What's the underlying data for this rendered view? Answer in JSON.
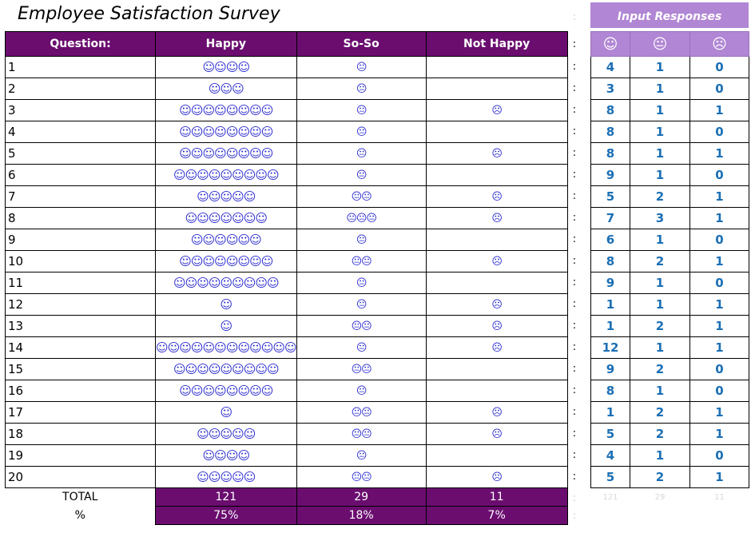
{
  "title": "Employee Satisfaction Survey",
  "headers": {
    "question": "Question:",
    "happy": "Happy",
    "soso": "So-So",
    "nothappy": "Not Happy"
  },
  "glyphs": {
    "happy": "☺",
    "soso": "😐",
    "sad": "☹"
  },
  "rows": [
    {
      "q": "1",
      "happy": "☺☺☺☺",
      "soso": "😐",
      "nothappy": "",
      "h": "4",
      "s": "1",
      "n": "0"
    },
    {
      "q": "2",
      "happy": "☺☺☺",
      "soso": "😐",
      "nothappy": "",
      "h": "3",
      "s": "1",
      "n": "0"
    },
    {
      "q": "3",
      "happy": "☺☺☺☺☺☺☺☺",
      "soso": "😐",
      "nothappy": "☹",
      "h": "8",
      "s": "1",
      "n": "1"
    },
    {
      "q": "4",
      "happy": "☺☺☺☺☺☺☺☺",
      "soso": "😐",
      "nothappy": "",
      "h": "8",
      "s": "1",
      "n": "0"
    },
    {
      "q": "5",
      "happy": "☺☺☺☺☺☺☺☺",
      "soso": "😐",
      "nothappy": "☹",
      "h": "8",
      "s": "1",
      "n": "1"
    },
    {
      "q": "6",
      "happy": "☺☺☺☺☺☺☺☺☺",
      "soso": "😐",
      "nothappy": "",
      "h": "9",
      "s": "1",
      "n": "0"
    },
    {
      "q": "7",
      "happy": "☺☺☺☺☺",
      "soso": "😐😐",
      "nothappy": "☹",
      "h": "5",
      "s": "2",
      "n": "1"
    },
    {
      "q": "8",
      "happy": "☺☺☺☺☺☺☺",
      "soso": "😐😐😐",
      "nothappy": "☹",
      "h": "7",
      "s": "3",
      "n": "1"
    },
    {
      "q": "9",
      "happy": "☺☺☺☺☺☺",
      "soso": "😐",
      "nothappy": "",
      "h": "6",
      "s": "1",
      "n": "0"
    },
    {
      "q": "10",
      "happy": "☺☺☺☺☺☺☺☺",
      "soso": "😐😐",
      "nothappy": "☹",
      "h": "8",
      "s": "2",
      "n": "1"
    },
    {
      "q": "11",
      "happy": "☺☺☺☺☺☺☺☺☺",
      "soso": "😐",
      "nothappy": "",
      "h": "9",
      "s": "1",
      "n": "0"
    },
    {
      "q": "12",
      "happy": "☺",
      "soso": "😐",
      "nothappy": "☹",
      "h": "1",
      "s": "1",
      "n": "1"
    },
    {
      "q": "13",
      "happy": "☺",
      "soso": "😐😐",
      "nothappy": "☹",
      "h": "1",
      "s": "2",
      "n": "1"
    },
    {
      "q": "14",
      "happy": "☺☺☺☺☺☺☺☺☺☺☺☺",
      "soso": "😐",
      "nothappy": "☹",
      "h": "12",
      "s": "1",
      "n": "1"
    },
    {
      "q": "15",
      "happy": "☺☺☺☺☺☺☺☺☺",
      "soso": "😐😐",
      "nothappy": "",
      "h": "9",
      "s": "2",
      "n": "0"
    },
    {
      "q": "16",
      "happy": "☺☺☺☺☺☺☺☺",
      "soso": "😐",
      "nothappy": "",
      "h": "8",
      "s": "1",
      "n": "0"
    },
    {
      "q": "17",
      "happy": "☺",
      "soso": "😐😐",
      "nothappy": "☹",
      "h": "1",
      "s": "2",
      "n": "1"
    },
    {
      "q": "18",
      "happy": "☺☺☺☺☺",
      "soso": "😐😐",
      "nothappy": "☹",
      "h": "5",
      "s": "2",
      "n": "1"
    },
    {
      "q": "19",
      "happy": "☺☺☺☺",
      "soso": "😐",
      "nothappy": "",
      "h": "4",
      "s": "1",
      "n": "0"
    },
    {
      "q": "20",
      "happy": "☺☺☺☺☺",
      "soso": "😐😐",
      "nothappy": "☹",
      "h": "5",
      "s": "2",
      "n": "1"
    }
  ],
  "totals": {
    "label": "TOTAL",
    "happy": "121",
    "soso": "29",
    "nothappy": "11"
  },
  "percent": {
    "label": "%",
    "happy": "75%",
    "soso": "18%",
    "nothappy": "7%"
  },
  "input": {
    "title": "Input Responses",
    "icons": [
      "☺",
      "😐",
      "☹"
    ],
    "footer": [
      "121",
      "29",
      "11"
    ]
  },
  "separator": ":",
  "colors": {
    "header_purple": "#6a0d6f",
    "input_header": "#b186d4",
    "smiley_blue": "#2a2ad0",
    "number_blue": "#1b6fb5"
  }
}
